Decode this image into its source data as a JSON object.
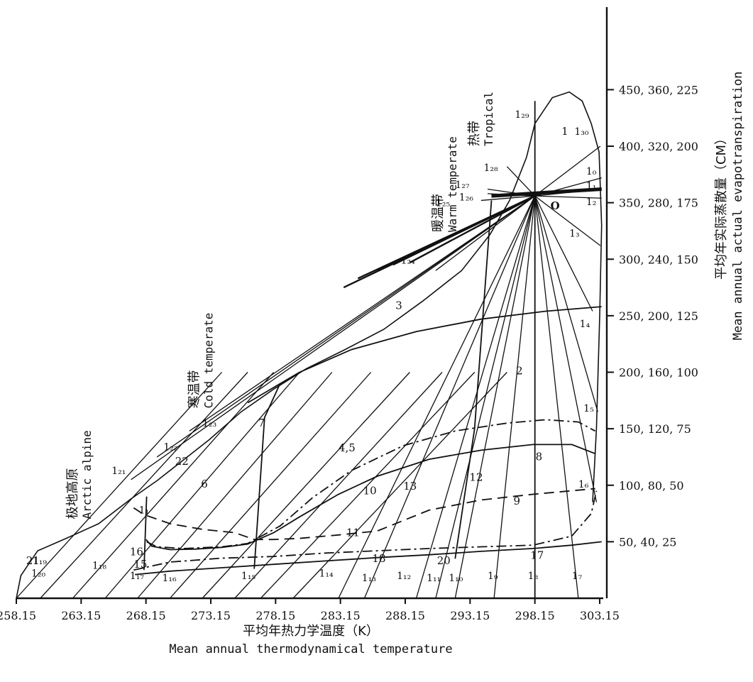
{
  "chart_data": {
    "type": "line",
    "title": "",
    "xlabel_cn": "平均年热力学温度（K）",
    "xlabel_en": "Mean annual thermodynamical temperature",
    "ylabel_cn": "平均年实际蒸散量（CM）",
    "ylabel_en": "Mean annual actual evapotranspiration",
    "x_ticks": [
      "258.15",
      "263.15",
      "268.15",
      "273.15",
      "278.15",
      "283.15",
      "288.15",
      "293.15",
      "298.15",
      "303.15"
    ],
    "xlim": [
      258.15,
      303.15
    ],
    "y_ticks": [
      {
        "value": 50,
        "label": "50, 40, 25"
      },
      {
        "value": 100,
        "label": "100, 80, 50"
      },
      {
        "value": 150,
        "label": "150, 120, 75"
      },
      {
        "value": 200,
        "label": "200, 160, 100"
      },
      {
        "value": 250,
        "label": "250, 200, 125"
      },
      {
        "value": 300,
        "label": "300, 240, 150"
      },
      {
        "value": 350,
        "label": "350, 280, 175"
      },
      {
        "value": 400,
        "label": "400, 320, 200"
      },
      {
        "value": 450,
        "label": "450, 360, 225"
      }
    ],
    "ylim": [
      0,
      460
    ],
    "center_point": {
      "label": "O",
      "x": 298.15,
      "y": 356
    },
    "envelope": [
      [
        258.15,
        0
      ],
      [
        258.5,
        20
      ],
      [
        259.8,
        42
      ],
      [
        262,
        53
      ],
      [
        264.5,
        66
      ],
      [
        267,
        88
      ],
      [
        269,
        104
      ],
      [
        271,
        122
      ],
      [
        273,
        140
      ],
      [
        275.5,
        165
      ],
      [
        278,
        185
      ],
      [
        280.5,
        203
      ],
      [
        283.5,
        220
      ],
      [
        286.5,
        238
      ],
      [
        289.5,
        263
      ],
      [
        292.5,
        290
      ],
      [
        294.7,
        322
      ],
      [
        296.2,
        352
      ],
      [
        297.5,
        390
      ],
      [
        298.15,
        420
      ],
      [
        299.5,
        443
      ],
      [
        300.8,
        448
      ],
      [
        301.8,
        440
      ],
      [
        302.5,
        420
      ],
      [
        303.1,
        395
      ],
      [
        303.3,
        330
      ],
      [
        303.15,
        250
      ],
      [
        302.9,
        150
      ],
      [
        302.6,
        85
      ]
    ],
    "boundaries": [
      {
        "style": "solid",
        "points": [
          [
            268.15,
            52
          ],
          [
            268.6,
            46
          ],
          [
            270,
            43
          ],
          [
            272,
            43.5
          ],
          [
            274,
            45
          ],
          [
            276,
            48
          ],
          [
            278,
            58
          ],
          [
            280,
            72
          ],
          [
            283,
            92
          ],
          [
            286,
            108
          ],
          [
            290,
            123
          ],
          [
            294,
            131
          ],
          [
            298,
            136
          ],
          [
            301,
            136
          ],
          [
            302.8,
            128
          ]
        ]
      },
      {
        "style": "dashdot",
        "points": [
          [
            268.2,
            50
          ],
          [
            269,
            45.5
          ],
          [
            271,
            44
          ],
          [
            274,
            45.5
          ],
          [
            276,
            48.5
          ],
          [
            278.5,
            64
          ],
          [
            281,
            89
          ],
          [
            284,
            113
          ],
          [
            288,
            135
          ],
          [
            292,
            148
          ],
          [
            296,
            155
          ],
          [
            299,
            158
          ],
          [
            301.5,
            156
          ],
          [
            302.8,
            148
          ]
        ]
      },
      {
        "style": "dashed",
        "points": [
          [
            267.2,
            80
          ],
          [
            268,
            74
          ],
          [
            270,
            66
          ],
          [
            272.5,
            61
          ],
          [
            275,
            58
          ],
          [
            276.5,
            52
          ],
          [
            278,
            52
          ],
          [
            280,
            53
          ],
          [
            283,
            56
          ],
          [
            286,
            59.5
          ],
          [
            290,
            78
          ],
          [
            294,
            87
          ],
          [
            298,
            92
          ],
          [
            302.8,
            97
          ]
        ]
      },
      {
        "style": "dashdot",
        "points": [
          [
            267.2,
            25
          ],
          [
            270,
            32
          ],
          [
            274,
            35.5
          ],
          [
            278,
            37
          ],
          [
            282,
            40
          ],
          [
            286,
            42
          ],
          [
            290,
            44
          ],
          [
            294,
            45.5
          ],
          [
            298,
            47
          ],
          [
            301,
            55
          ],
          [
            302.5,
            75
          ],
          [
            302.9,
            95
          ]
        ]
      },
      {
        "style": "solid",
        "points": [
          [
            267.3,
            21
          ],
          [
            270,
            24
          ],
          [
            274,
            27
          ],
          [
            278,
            30
          ],
          [
            282,
            33
          ],
          [
            286,
            36
          ],
          [
            290,
            38.5
          ],
          [
            294,
            41.5
          ],
          [
            298,
            44
          ],
          [
            301,
            47
          ],
          [
            303.3,
            50
          ]
        ]
      },
      {
        "style": "solid",
        "points": [
          [
            268,
            25
          ],
          [
            268.2,
            90
          ]
        ]
      },
      {
        "style": "solid",
        "points": [
          [
            276.5,
            26
          ],
          [
            277.3,
            160
          ],
          [
            278.5,
            190
          ]
        ]
      },
      {
        "style": "solid",
        "points": [
          [
            292,
            35
          ],
          [
            293.5,
            150
          ],
          [
            294.8,
            352
          ]
        ]
      },
      {
        "style": "solid",
        "points": [
          [
            276,
            173
          ],
          [
            280,
            200
          ],
          [
            284,
            220
          ],
          [
            289,
            236
          ],
          [
            294,
            247
          ],
          [
            299,
            254
          ],
          [
            303.3,
            258
          ]
        ]
      },
      {
        "style": "solid",
        "points": [
          [
            298.15,
            0
          ],
          [
            298.15,
            440
          ]
        ]
      }
    ],
    "rays_to_O": [
      {
        "label": "1₁₄",
        "x": 283.0
      },
      {
        "label": "1₁₃",
        "x": 285.0
      },
      {
        "label": "1₁₂",
        "x": 289.0
      },
      {
        "label": "1₁₁",
        "x": 290.5
      },
      {
        "label": "1₁₀",
        "x": 292.0
      },
      {
        "label": "1₉",
        "x": 295.0
      },
      {
        "label": "1₈",
        "x": 298.15
      },
      {
        "label": "1₇",
        "x": 301.5
      },
      {
        "label": "1₆",
        "x": 302.9
      },
      {
        "label": "1₅",
        "x": 303.0
      },
      {
        "label": "1₄",
        "x": 302.6
      },
      {
        "label": "1₃",
        "x": 303.2
      },
      {
        "label": "1₂",
        "x": 303.3
      },
      {
        "label": "1₁",
        "x": 303.3
      },
      {
        "label": "1₀",
        "x": 303.3
      },
      {
        "label": "1₃₀",
        "x": 303.2
      },
      {
        "label": "1₂₉",
        "x": 298.15
      },
      {
        "label": "1₂₈",
        "x": 296.0
      },
      {
        "label": "1₂₇",
        "x": 294.5
      },
      {
        "label": "1₂₆",
        "x": 294.5
      },
      {
        "label": "1₂₅",
        "x": 294.0
      },
      {
        "label": "1₂₄",
        "x": 290.5
      },
      {
        "label": "1₂₃",
        "x": 271.5
      },
      {
        "label": "1₂₂",
        "x": 269.0
      },
      {
        "label": "1₂₁",
        "x": 267.0
      }
    ],
    "parallel_lines": [
      {
        "x0": 258.15,
        "x1": 264.0
      },
      {
        "x0": 260.0,
        "x1": 266.0
      },
      {
        "x0": 262.5,
        "x1": 268.0
      },
      {
        "x0": 265.0,
        "x1": 270.0
      },
      {
        "x0": 267.5,
        "x1": 272.5
      },
      {
        "x0": 270.0,
        "x1": 275.5
      },
      {
        "x0": 272.5,
        "x1": 278.5
      },
      {
        "x0": 275.0,
        "x1": 281.0
      },
      {
        "x0": 277.0,
        "x1": 283.5
      },
      {
        "x0": 279.5,
        "x1": 286.0
      }
    ],
    "line_labels": [
      {
        "text": "1₂₉",
        "x": 296.6,
        "y": 425
      },
      {
        "text": "1₃₀",
        "x": 301.2,
        "y": 410
      },
      {
        "text": "1₂₈",
        "x": 294.2,
        "y": 378
      },
      {
        "text": "1₀",
        "x": 302.1,
        "y": 375
      },
      {
        "text": "1₁",
        "x": 302.1,
        "y": 362
      },
      {
        "text": "1₂₇",
        "x": 292.0,
        "y": 363
      },
      {
        "text": "1₂₆",
        "x": 292.3,
        "y": 352
      },
      {
        "text": "1₂",
        "x": 302.1,
        "y": 348
      },
      {
        "text": "1₂₅",
        "x": 290.5,
        "y": 347
      },
      {
        "text": "1₃",
        "x": 300.8,
        "y": 320
      },
      {
        "text": "1₂₄",
        "x": 287.8,
        "y": 296
      },
      {
        "text": "1₄",
        "x": 301.6,
        "y": 240
      },
      {
        "text": "1₅",
        "x": 301.9,
        "y": 165
      },
      {
        "text": "1₂₃",
        "x": 272.5,
        "y": 152
      },
      {
        "text": "1₂₂",
        "x": 269.5,
        "y": 131
      },
      {
        "text": "1₂₁",
        "x": 265.5,
        "y": 110
      },
      {
        "text": "1₆",
        "x": 301.5,
        "y": 98
      },
      {
        "text": "1₁",
        "x": 267.6,
        "y": 75
      },
      {
        "text": "1₁₉",
        "x": 259.4,
        "y": 30
      },
      {
        "text": "1₂₀",
        "x": 259.3,
        "y": 19
      },
      {
        "text": "1₁₈",
        "x": 264.0,
        "y": 26
      },
      {
        "text": "1₁₇",
        "x": 266.9,
        "y": 17
      },
      {
        "text": "1₁₆",
        "x": 269.4,
        "y": 15
      },
      {
        "text": "1₁₅",
        "x": 275.5,
        "y": 17
      },
      {
        "text": "1₁₄",
        "x": 281.5,
        "y": 19
      },
      {
        "text": "1₁₃",
        "x": 284.8,
        "y": 15
      },
      {
        "text": "1₁₂",
        "x": 287.5,
        "y": 17
      },
      {
        "text": "1₁₁",
        "x": 289.8,
        "y": 15
      },
      {
        "text": "1₁₀",
        "x": 291.5,
        "y": 15
      },
      {
        "text": "1₉",
        "x": 294.5,
        "y": 17
      },
      {
        "text": "1₈",
        "x": 297.6,
        "y": 17
      },
      {
        "text": "1₇",
        "x": 301.0,
        "y": 17
      }
    ],
    "regions": [
      {
        "text": "1",
        "x": 300.2,
        "y": 410
      },
      {
        "text": "O",
        "x": 299.6,
        "y": 346
      },
      {
        "text": "3",
        "x": 287.4,
        "y": 256
      },
      {
        "text": "2",
        "x": 296.7,
        "y": 198
      },
      {
        "text": "7",
        "x": 276.8,
        "y": 152
      },
      {
        "text": "22",
        "x": 270.4,
        "y": 118
      },
      {
        "text": "4,5",
        "x": 283.0,
        "y": 130
      },
      {
        "text": "6",
        "x": 272.4,
        "y": 98
      },
      {
        "text": "8",
        "x": 298.2,
        "y": 122
      },
      {
        "text": "12",
        "x": 293.1,
        "y": 104
      },
      {
        "text": "10",
        "x": 284.9,
        "y": 92
      },
      {
        "text": "13",
        "x": 288.0,
        "y": 96
      },
      {
        "text": "9",
        "x": 296.5,
        "y": 83
      },
      {
        "text": "11",
        "x": 283.6,
        "y": 55
      },
      {
        "text": "16",
        "x": 266.9,
        "y": 38
      },
      {
        "text": "15",
        "x": 267.2,
        "y": 27
      },
      {
        "text": "21",
        "x": 258.9,
        "y": 30
      },
      {
        "text": "18",
        "x": 285.6,
        "y": 32
      },
      {
        "text": "20",
        "x": 290.6,
        "y": 30
      },
      {
        "text": "17",
        "x": 297.8,
        "y": 35
      }
    ],
    "zones": [
      {
        "cn": "热带",
        "en": "Tropical",
        "x": 293.8,
        "y": 400
      },
      {
        "cn": "暖温带",
        "en": "Warm temperate",
        "x": 291.0,
        "y": 324
      },
      {
        "cn": "寒温带",
        "en": "Cold temperate",
        "x": 272.2,
        "y": 168
      },
      {
        "cn": "极地高原",
        "en": "Arctic alpine",
        "x": 262.8,
        "y": 70
      }
    ],
    "grid": false,
    "legend": "none"
  }
}
